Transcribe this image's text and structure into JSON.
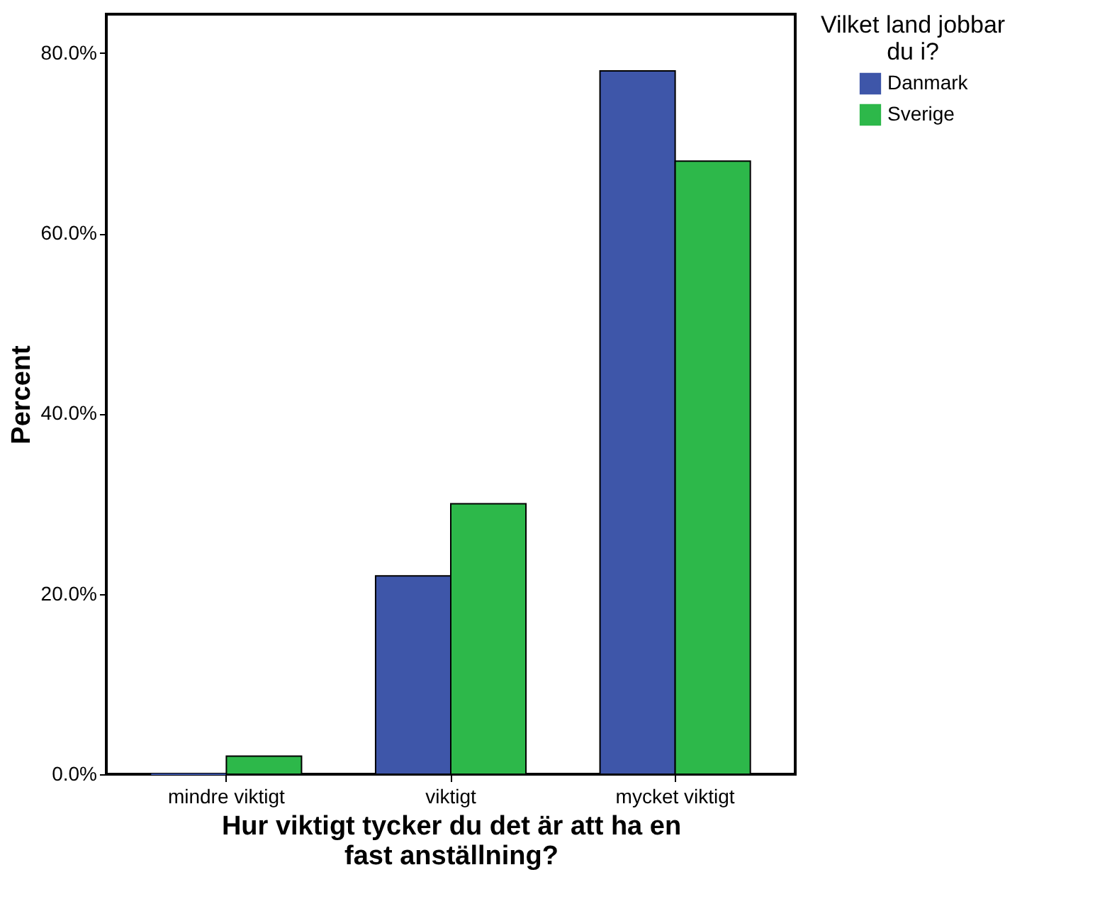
{
  "chart_data": {
    "type": "bar",
    "categories": [
      "mindre viktigt",
      "viktigt",
      "mycket viktigt"
    ],
    "series": [
      {
        "name": "Danmark",
        "color": "#3e56a9",
        "values": [
          0,
          22,
          78
        ]
      },
      {
        "name": "Sverige",
        "color": "#2db84a",
        "values": [
          2,
          30,
          68
        ]
      }
    ],
    "xlabel": "Hur viktigt tycker du det är att ha en fast anställning?",
    "ylabel": "Percent",
    "legend_title": "Vilket land jobbar du i?",
    "ylim": [
      0,
      84.3
    ],
    "yticks": [
      {
        "value": 0,
        "label": "0.0%"
      },
      {
        "value": 20,
        "label": "20.0%"
      },
      {
        "value": 40,
        "label": "40.0%"
      },
      {
        "value": 60,
        "label": "60.0%"
      },
      {
        "value": 80,
        "label": "80.0%"
      }
    ],
    "grid": false,
    "legend": "top right"
  }
}
